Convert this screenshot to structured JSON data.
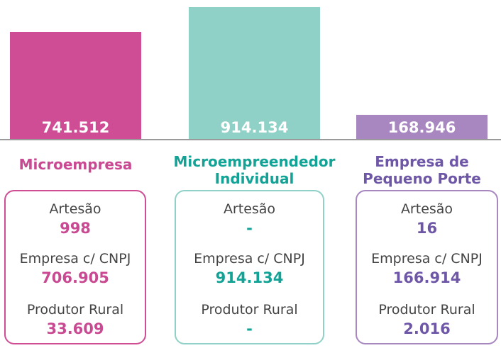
{
  "chart_data": {
    "type": "bar",
    "categories": [
      "Microempresa",
      "Microempreendedor Individual",
      "Empresa de Pequeno Porte"
    ],
    "values": [
      741512,
      914134,
      168946
    ],
    "value_labels": [
      "741.512",
      "914.134",
      "168.946"
    ],
    "colors": [
      "#cf4d95",
      "#8fd1c6",
      "#a886c0"
    ],
    "text_colors": [
      "#c94a92",
      "#13a396",
      "#6f57a8"
    ],
    "details": [
      [
        {
          "label": "Artesão",
          "value": "998"
        },
        {
          "label": "Empresa c/ CNPJ",
          "value": "706.905"
        },
        {
          "label": "Produtor Rural",
          "value": "33.609"
        }
      ],
      [
        {
          "label": "Artesão",
          "value": "-"
        },
        {
          "label": "Empresa c/ CNPJ",
          "value": "914.134"
        },
        {
          "label": "Produtor Rural",
          "value": "-"
        }
      ],
      [
        {
          "label": "Artesão",
          "value": "16"
        },
        {
          "label": "Empresa c/ CNPJ",
          "value": "166.914"
        },
        {
          "label": "Produtor Rural",
          "value": "2.016"
        }
      ]
    ]
  }
}
